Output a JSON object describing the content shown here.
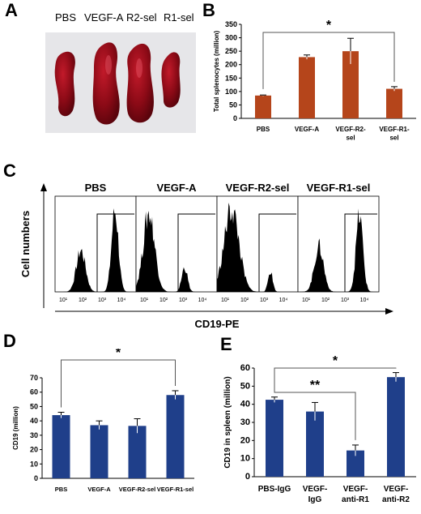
{
  "panels": {
    "A": {
      "letter": "A",
      "labels": [
        "PBS",
        "VEGF-A",
        "R2-sel",
        "R1-sel"
      ]
    },
    "B": {
      "letter": "B"
    },
    "C": {
      "letter": "C",
      "titles": [
        "PBS",
        "VEGF-A",
        "VEGF-R2-sel",
        "VEGF-R1-sel"
      ],
      "ylabel": "Cell numbers",
      "xlabel": "CD19-PE",
      "ticks": [
        "10¹",
        "10²",
        "10³",
        "10⁴"
      ]
    },
    "D": {
      "letter": "D"
    },
    "E": {
      "letter": "E"
    }
  },
  "colors": {
    "orange_bar": "#b5451b",
    "blue_bar": "#1f3f8a",
    "photo_bg": "#e8e8ea",
    "spleen": "#8b0a16"
  },
  "chart_data": [
    {
      "id": "B",
      "type": "bar",
      "categories": [
        "PBS",
        "VEGF-A",
        "VEGF-R2-sel",
        "VEGF-R1-sel"
      ],
      "category_lines": [
        [
          "PBS"
        ],
        [
          "VEGF-A"
        ],
        [
          "VEGF-R2-",
          "sel"
        ],
        [
          "VEGF-R1-",
          "sel"
        ]
      ],
      "values": [
        85,
        228,
        250,
        110
      ],
      "errors": [
        2,
        8,
        48,
        8
      ],
      "ylabel": "Total splenocytes (million)",
      "ylim": [
        0,
        350
      ],
      "yticks": [
        0,
        50,
        100,
        150,
        200,
        250,
        300,
        350
      ],
      "significance": [
        {
          "from": 0,
          "to": 3,
          "label": "*"
        }
      ],
      "color": "#b5451b"
    },
    {
      "id": "D",
      "type": "bar",
      "categories": [
        "PBS",
        "VEGF-A",
        "VEGF-R2-sel",
        "VEGF-R1-sel"
      ],
      "category_lines": [
        [
          "PBS"
        ],
        [
          "VEGF-A"
        ],
        [
          "VEGF-R2-sel"
        ],
        [
          "VEGF-R1-sel"
        ]
      ],
      "values": [
        44,
        37,
        36.5,
        58
      ],
      "errors": [
        2,
        3,
        5,
        3
      ],
      "ylabel": "CD19 (million)",
      "ylim": [
        0,
        70
      ],
      "yticks": [
        0,
        10,
        20,
        30,
        40,
        50,
        60,
        70
      ],
      "significance": [
        {
          "from": 0,
          "to": 3,
          "label": "*"
        }
      ],
      "color": "#1f3f8a"
    },
    {
      "id": "E",
      "type": "bar",
      "categories": [
        "PBS-IgG",
        "VEGF-IgG",
        "VEGF-anti-R1",
        "VEGF-anti-R2"
      ],
      "category_lines": [
        [
          "PBS-IgG"
        ],
        [
          "VEGF-",
          "IgG"
        ],
        [
          "VEGF-",
          "anti-R1"
        ],
        [
          "VEGF-",
          "anti-R2"
        ]
      ],
      "values": [
        42.5,
        36,
        14.5,
        55
      ],
      "errors": [
        1.5,
        5,
        3,
        2.5
      ],
      "ylabel": "CD19 in spleen (million)",
      "ylim": [
        0,
        60
      ],
      "yticks": [
        0,
        10,
        20,
        30,
        40,
        50,
        60
      ],
      "significance": [
        {
          "from": 0,
          "to": 3,
          "label": "*"
        },
        {
          "from": 0,
          "to": 2,
          "label": "**"
        }
      ],
      "color": "#1f3f8a"
    }
  ]
}
